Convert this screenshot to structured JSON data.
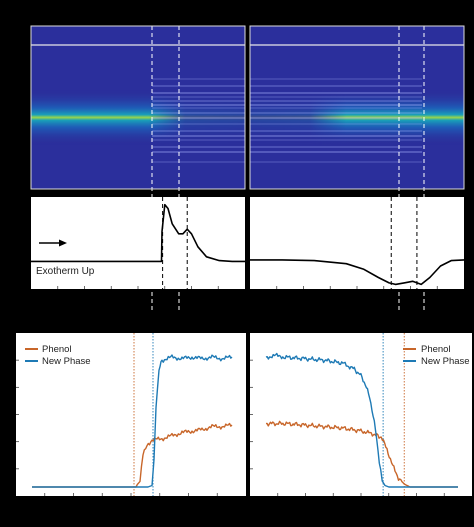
{
  "chart_data": [
    {
      "type": "heatmap",
      "panel": "heating-heatmap",
      "colors": {
        "background": "#2b2f9c",
        "band_center": "#9ad64a",
        "band_edge": "#1aa0b8",
        "frame": "#dddddd"
      },
      "transition_markers": [
        "dashed-white",
        "dashed-white"
      ]
    },
    {
      "type": "heatmap",
      "panel": "cooling-heatmap",
      "colors": {
        "background": "#2b2f9c",
        "band_center": "#9ad64a",
        "band_edge": "#1aa0b8",
        "frame": "#dddddd"
      },
      "transition_markers": [
        "dashed-white",
        "dashed-white"
      ]
    },
    {
      "type": "line",
      "panel": "heating-dsc",
      "annotation": "Exotherm Up",
      "has_arrow": true,
      "xlim": [
        0,
        10
      ],
      "ylim": [
        0,
        1.2
      ],
      "series": [
        {
          "x": [
            0,
            6.1,
            6.12,
            6.25,
            6.4,
            6.6,
            6.9,
            7.1,
            7.3,
            7.5,
            7.8,
            8.2,
            8.8,
            9.4,
            10
          ],
          "y": [
            0.36,
            0.36,
            0.75,
            1.1,
            1.05,
            0.85,
            0.72,
            0.72,
            0.78,
            0.72,
            0.55,
            0.42,
            0.37,
            0.36,
            0.36
          ]
        }
      ],
      "markers_x": [
        6.15,
        7.3
      ]
    },
    {
      "type": "line",
      "panel": "cooling-dsc",
      "xlim": [
        0,
        10
      ],
      "ylim": [
        0,
        1.2
      ],
      "series": [
        {
          "x": [
            0,
            1.5,
            3,
            4.5,
            5.3,
            6,
            6.5,
            6.8,
            7.2,
            7.6,
            8.0,
            8.4,
            8.9,
            9.4,
            10
          ],
          "y": [
            0.38,
            0.38,
            0.37,
            0.33,
            0.26,
            0.15,
            0.08,
            0.06,
            0.08,
            0.1,
            0.06,
            0.15,
            0.3,
            0.37,
            0.38
          ]
        }
      ],
      "markers_x": [
        6.6,
        7.8
      ]
    },
    {
      "type": "line",
      "panel": "heating-fraction",
      "legend": [
        "Phenol",
        "New Phase"
      ],
      "xlim": [
        0,
        10
      ],
      "ylim": [
        0,
        1
      ],
      "colors": {
        "Phenol": "#c8662a",
        "New Phase": "#1e7ab5"
      },
      "series": [
        {
          "name": "Phenol",
          "x": [
            0,
            5.2,
            5.4,
            5.55,
            5.75,
            6.0,
            6.5,
            7.0,
            7.5,
            8.0,
            8.5,
            9.0,
            9.5,
            10
          ],
          "y": [
            0.02,
            0.02,
            0.07,
            0.24,
            0.3,
            0.33,
            0.34,
            0.36,
            0.38,
            0.39,
            0.4,
            0.42,
            0.42,
            0.43
          ]
        },
        {
          "name": "New Phase",
          "x": [
            0,
            5.8,
            6.0,
            6.1,
            6.2,
            6.35,
            6.5,
            7.0,
            7.5,
            8.0,
            8.5,
            9.0,
            9.5,
            10
          ],
          "y": [
            0.02,
            0.02,
            0.03,
            0.2,
            0.55,
            0.8,
            0.86,
            0.88,
            0.87,
            0.88,
            0.87,
            0.88,
            0.87,
            0.88
          ]
        }
      ],
      "markers_x": [
        5.1,
        6.05
      ]
    },
    {
      "type": "line",
      "panel": "cooling-fraction",
      "legend": [
        "Phenol",
        "New Phase"
      ],
      "xlim": [
        0,
        10
      ],
      "ylim": [
        0,
        1
      ],
      "colors": {
        "Phenol": "#c8662a",
        "New Phase": "#1e7ab5"
      },
      "series": [
        {
          "name": "Phenol",
          "x": [
            0,
            1,
            2,
            3,
            4,
            5,
            5.6,
            6.0,
            6.3,
            6.6,
            6.9,
            7.2,
            7.5,
            8,
            9,
            10
          ],
          "y": [
            0.44,
            0.44,
            0.43,
            0.42,
            0.41,
            0.39,
            0.37,
            0.35,
            0.27,
            0.16,
            0.08,
            0.04,
            0.02,
            0.02,
            0.02,
            0.02
          ]
        },
        {
          "name": "New Phase",
          "x": [
            0,
            0.5,
            1,
            2,
            3,
            4,
            4.6,
            5.0,
            5.4,
            5.7,
            5.9,
            6.05,
            6.2,
            6.4,
            7,
            8,
            9,
            10
          ],
          "y": [
            0.88,
            0.89,
            0.88,
            0.87,
            0.86,
            0.84,
            0.8,
            0.75,
            0.62,
            0.4,
            0.18,
            0.06,
            0.03,
            0.02,
            0.02,
            0.02,
            0.02,
            0.02
          ]
        }
      ],
      "markers_x": [
        6.1,
        7.2
      ]
    }
  ]
}
